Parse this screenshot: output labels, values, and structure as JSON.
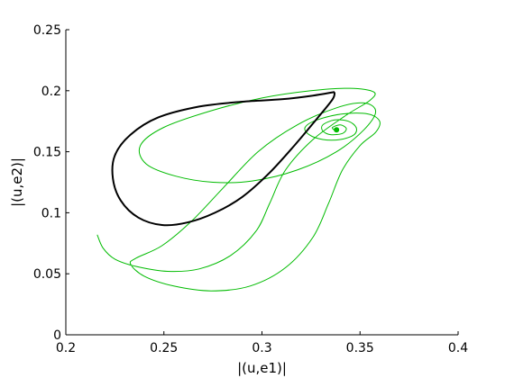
{
  "chart_data": {
    "type": "line",
    "title": "",
    "xlabel": "|(u,e1)|",
    "ylabel": "|(u,e2)|",
    "xlim": [
      0.2,
      0.4
    ],
    "ylim": [
      0,
      0.25
    ],
    "xticks": [
      0.2,
      0.25,
      0.3,
      0.35,
      0.4
    ],
    "xtick_labels": [
      "0.2",
      "0.25",
      "0.3",
      "0.35",
      "0.4"
    ],
    "yticks": [
      0,
      0.05,
      0.1,
      0.15,
      0.2,
      0.25
    ],
    "ytick_labels": [
      "0",
      "0.05",
      "0.1",
      "0.15",
      "0.2",
      "0.25"
    ],
    "grid": false,
    "legend": "none",
    "colors": {
      "trajectory": "#00bb00",
      "periodic_orbit": "#000000",
      "axes": "#000000"
    },
    "series": [
      {
        "style": "thin-green-spiral",
        "points": [
          [
            0.216,
            0.082
          ],
          [
            0.219,
            0.071
          ],
          [
            0.225,
            0.062
          ],
          [
            0.236,
            0.056
          ],
          [
            0.252,
            0.052
          ],
          [
            0.268,
            0.054
          ],
          [
            0.284,
            0.065
          ],
          [
            0.297,
            0.085
          ],
          [
            0.304,
            0.108
          ],
          [
            0.312,
            0.135
          ],
          [
            0.326,
            0.16
          ],
          [
            0.343,
            0.18
          ],
          [
            0.355,
            0.192
          ],
          [
            0.357,
            0.199
          ],
          [
            0.345,
            0.202
          ],
          [
            0.325,
            0.2
          ],
          [
            0.3,
            0.194
          ],
          [
            0.275,
            0.184
          ],
          [
            0.25,
            0.17
          ],
          [
            0.238,
            0.155
          ],
          [
            0.241,
            0.14
          ],
          [
            0.256,
            0.13
          ],
          [
            0.275,
            0.125
          ],
          [
            0.295,
            0.126
          ],
          [
            0.318,
            0.135
          ],
          [
            0.338,
            0.15
          ],
          [
            0.352,
            0.168
          ],
          [
            0.358,
            0.183
          ],
          [
            0.352,
            0.19
          ],
          [
            0.338,
            0.186
          ],
          [
            0.318,
            0.172
          ],
          [
            0.298,
            0.15
          ],
          [
            0.28,
            0.12
          ],
          [
            0.264,
            0.093
          ],
          [
            0.249,
            0.073
          ],
          [
            0.236,
            0.063
          ],
          [
            0.233,
            0.058
          ],
          [
            0.24,
            0.048
          ],
          [
            0.255,
            0.04
          ],
          [
            0.274,
            0.036
          ],
          [
            0.294,
            0.04
          ],
          [
            0.312,
            0.055
          ],
          [
            0.326,
            0.08
          ],
          [
            0.334,
            0.108
          ],
          [
            0.341,
            0.135
          ],
          [
            0.35,
            0.155
          ],
          [
            0.358,
            0.166
          ],
          [
            0.36,
            0.175
          ],
          [
            0.354,
            0.181
          ],
          [
            0.341,
            0.181
          ],
          [
            0.328,
            0.176
          ],
          [
            0.322,
            0.17
          ],
          [
            0.324,
            0.164
          ],
          [
            0.331,
            0.16
          ],
          [
            0.34,
            0.16
          ],
          [
            0.347,
            0.164
          ],
          [
            0.348,
            0.17
          ],
          [
            0.344,
            0.175
          ],
          [
            0.337,
            0.176
          ],
          [
            0.331,
            0.172
          ],
          [
            0.331,
            0.167
          ],
          [
            0.335,
            0.164
          ],
          [
            0.341,
            0.165
          ],
          [
            0.343,
            0.169
          ],
          [
            0.34,
            0.172
          ],
          [
            0.336,
            0.17
          ],
          [
            0.337,
            0.168
          ],
          [
            0.339,
            0.169
          ]
        ]
      },
      {
        "style": "thick-black-closed-orbit",
        "points": [
          [
            0.337,
            0.199
          ],
          [
            0.326,
            0.196
          ],
          [
            0.31,
            0.193
          ],
          [
            0.29,
            0.191
          ],
          [
            0.268,
            0.187
          ],
          [
            0.247,
            0.178
          ],
          [
            0.233,
            0.164
          ],
          [
            0.225,
            0.147
          ],
          [
            0.224,
            0.128
          ],
          [
            0.228,
            0.11
          ],
          [
            0.237,
            0.096
          ],
          [
            0.249,
            0.09
          ],
          [
            0.262,
            0.092
          ],
          [
            0.276,
            0.1
          ],
          [
            0.29,
            0.113
          ],
          [
            0.304,
            0.133
          ],
          [
            0.317,
            0.156
          ],
          [
            0.328,
            0.177
          ],
          [
            0.336,
            0.193
          ],
          [
            0.337,
            0.199
          ]
        ]
      }
    ],
    "marker": {
      "x": 0.338,
      "y": 0.168
    }
  }
}
